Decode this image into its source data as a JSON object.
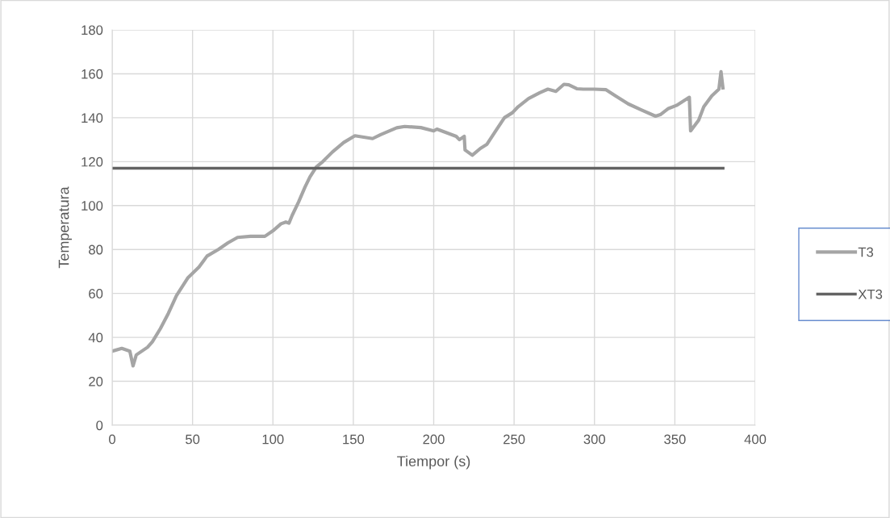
{
  "chart_data": {
    "type": "line",
    "xlabel": "Tiempor (s)",
    "ylabel": "Temperatura",
    "xlim": [
      0,
      400
    ],
    "xticks": [
      0,
      50,
      100,
      150,
      200,
      250,
      300,
      350,
      400
    ],
    "ylim": [
      0,
      180
    ],
    "yticks": [
      0,
      20,
      40,
      60,
      80,
      100,
      120,
      140,
      160,
      180
    ],
    "grid": true,
    "legend": "right",
    "marker": "none",
    "line_style": "solid",
    "series": [
      {
        "name": "T3",
        "color": "#a5a5a5",
        "x": [
          0,
          6,
          11,
          13,
          15,
          22,
          25,
          30,
          35,
          40,
          47,
          54,
          59,
          66,
          72,
          78,
          86,
          95,
          100,
          105,
          108,
          110,
          112,
          116,
          120,
          123,
          127,
          131,
          137,
          144,
          151,
          162,
          167,
          177,
          182,
          192,
          200,
          202,
          214,
          216,
          219,
          219.5,
          224,
          229,
          233,
          239,
          244,
          249,
          252.5,
          259,
          266,
          271,
          276,
          281,
          284,
          289,
          293,
          300,
          307,
          313,
          321,
          329.6,
          338,
          341,
          346,
          351,
          359,
          359.8,
          364.8,
          368,
          373,
          377.4,
          378.7,
          379.9
        ],
        "values": [
          33.7,
          35,
          33.7,
          27,
          32,
          35.5,
          38,
          44,
          51,
          59,
          67,
          72,
          77,
          80,
          83,
          85.5,
          86,
          86,
          88.5,
          91.7,
          92.5,
          92,
          95.6,
          101.7,
          108.5,
          113,
          117.6,
          120,
          124.4,
          128.7,
          131.8,
          130.5,
          132.3,
          135.4,
          136,
          135.5,
          134,
          134.8,
          131.5,
          130,
          131.5,
          125.3,
          122.9,
          126,
          127.8,
          134.5,
          140,
          142.3,
          145,
          148.7,
          151.4,
          153,
          152,
          155.2,
          155,
          153.2,
          153,
          153,
          152.8,
          150,
          146.3,
          143.4,
          140.7,
          141.4,
          144.2,
          145.6,
          149.3,
          134,
          138.9,
          145,
          150,
          153,
          161,
          153.6
        ]
      },
      {
        "name": "XT3",
        "color": "#636363",
        "x": [
          0,
          380
        ],
        "values": [
          117,
          117
        ]
      }
    ]
  }
}
